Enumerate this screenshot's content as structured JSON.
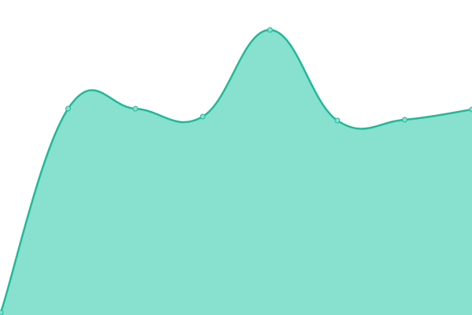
{
  "chart_data": {
    "type": "area",
    "x": [
      0,
      1,
      2,
      3,
      4,
      5,
      6,
      7
    ],
    "series": [
      {
        "values": [
          3,
          262,
          262,
          252,
          362,
          247,
          248,
          261
        ]
      }
    ],
    "ylim": [
      0,
      400
    ],
    "grid": false,
    "smooth": true,
    "colors": {
      "line": "#1fba98",
      "fill": "#88e0cf",
      "point_fill": "#88e0cf"
    }
  }
}
